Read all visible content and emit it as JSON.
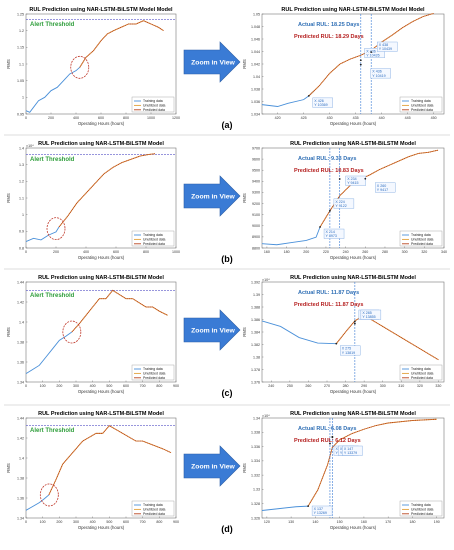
{
  "zoom_label": "Zoom in View",
  "legend": [
    "Training data",
    "Unutilized data",
    "Predicted data"
  ],
  "chart_data": [
    {
      "label": "(a)",
      "left": {
        "type": "line",
        "title": "RUL Prediction using NAR-LSTM-BiLSTM Model Model",
        "xlabel": "Operating Hours (hours)",
        "ylabel": "RMS",
        "xticks": [
          "0",
          "200",
          "400",
          "600",
          "800",
          "1000",
          "1200"
        ],
        "yticks": [
          "1.25",
          "1.2",
          "1.15",
          "1.1",
          "1.05",
          "1",
          "0.95"
        ],
        "exponent": "",
        "xlim": [
          0,
          1200
        ],
        "ylim": [
          0.95,
          1.25
        ],
        "threshold": 1.234,
        "annotation": "Alert Threshold",
        "train": [
          [
            0,
            0.96
          ],
          [
            30,
            0.955
          ],
          [
            60,
            0.97
          ],
          [
            100,
            0.99
          ],
          [
            150,
            1.0
          ],
          [
            200,
            1.02
          ],
          [
            250,
            1.03
          ],
          [
            300,
            1.05
          ],
          [
            350,
            1.07
          ],
          [
            400,
            1.08
          ],
          [
            430,
            1.09
          ]
        ],
        "pred": [
          [
            430,
            1.09
          ],
          [
            480,
            1.12
          ],
          [
            540,
            1.14
          ],
          [
            600,
            1.17
          ],
          [
            650,
            1.19
          ],
          [
            700,
            1.2
          ],
          [
            760,
            1.21
          ],
          [
            820,
            1.22
          ],
          [
            880,
            1.22
          ],
          [
            940,
            1.23
          ],
          [
            1000,
            1.22
          ],
          [
            1060,
            1.21
          ],
          [
            1100,
            1.2
          ]
        ],
        "ellipse": [
          430,
          1.09
        ]
      },
      "right": {
        "type": "line",
        "title": "RUL Prediction using NAR-LSTM-BiLSTM Model Model",
        "xlabel": "Operating Hours (hours)",
        "ylabel": "RMS",
        "xticks": [
          "420",
          "425",
          "430",
          "435",
          "440",
          "445",
          "450"
        ],
        "yticks": [
          "1.05",
          "1.048",
          "1.046",
          "1.044",
          "1.042",
          "1.04",
          "1.038",
          "1.036",
          "1.034"
        ],
        "exponent": "",
        "xlim": [
          417,
          452
        ],
        "ylim": [
          1.034,
          1.05
        ],
        "actual_rul": "Actual RUL: 18.25 Days",
        "pred_rul": "Predicted RUL: 18.29 Days",
        "train": [
          [
            417,
            1.0355
          ],
          [
            420,
            1.0352
          ],
          [
            422,
            1.0357
          ],
          [
            425,
            1.0363
          ],
          [
            426,
            1.0369
          ],
          [
            427,
            1.0377
          ]
        ],
        "pred": [
          [
            426,
            1.0369
          ],
          [
            428,
            1.0385
          ],
          [
            430,
            1.0405
          ],
          [
            432,
            1.042
          ],
          [
            434,
            1.0428
          ],
          [
            436,
            1.0434
          ],
          [
            438,
            1.0442
          ],
          [
            440,
            1.0455
          ],
          [
            442,
            1.0466
          ],
          [
            444,
            1.0478
          ],
          [
            446,
            1.0488
          ],
          [
            448,
            1.0496
          ],
          [
            450,
            1.0501
          ]
        ],
        "tooltips": [
          {
            "x": 426,
            "y": 1.0369,
            "text": [
              "X 426",
              "Y 10369"
            ]
          },
          {
            "x": 436,
            "y": 1.0426,
            "text": [
              "X 436",
              "Y 10426"
            ]
          },
          {
            "x": 438,
            "y": 1.0439,
            "text": [
              "X 438",
              "Y 10439"
            ]
          },
          {
            "x": 436,
            "y": 1.0419,
            "text": [
              "X 436",
              "Y 10419"
            ]
          }
        ],
        "vlines": [
          436,
          438
        ]
      }
    },
    {
      "label": "(b)",
      "left": {
        "type": "line",
        "title": "RUL Prediction using NAR-LSTM-BiLSTM Model",
        "xlabel": "Operating Hours (hours)",
        "ylabel": "RMS",
        "xticks": [
          "0",
          "200",
          "400",
          "600",
          "800",
          "1000"
        ],
        "yticks": [
          "1.4",
          "1.3",
          "1.2",
          "1.1",
          "1",
          "0.9",
          "0.8"
        ],
        "exponent": "×10⁴",
        "xlim": [
          0,
          1000
        ],
        "ylim": [
          0.8,
          1.42
        ],
        "threshold": 1.38,
        "annotation": "Alert Threshold",
        "train": [
          [
            0,
            0.84
          ],
          [
            50,
            0.86
          ],
          [
            100,
            0.85
          ],
          [
            150,
            0.88
          ],
          [
            200,
            0.9
          ],
          [
            220,
            0.93
          ]
        ],
        "pred": [
          [
            220,
            0.93
          ],
          [
            280,
            1.0
          ],
          [
            340,
            1.08
          ],
          [
            400,
            1.14
          ],
          [
            460,
            1.2
          ],
          [
            520,
            1.26
          ],
          [
            580,
            1.3
          ],
          [
            640,
            1.33
          ],
          [
            700,
            1.35
          ],
          [
            760,
            1.37
          ],
          [
            820,
            1.38
          ],
          [
            860,
            1.385
          ]
        ],
        "ellipse": [
          200,
          0.92
        ]
      },
      "right": {
        "type": "line",
        "title": "RUL Prediction using NAR-LSTM-BiLSTM Model",
        "xlabel": "Operating Hours (hours)",
        "ylabel": "RMS",
        "xticks": [
          "160",
          "180",
          "200",
          "220",
          "240",
          "260",
          "280",
          "300",
          "320",
          "340"
        ],
        "yticks": [
          "9700",
          "9600",
          "9500",
          "9400",
          "9300",
          "9200",
          "9100",
          "9000",
          "8900",
          "8800"
        ],
        "exponent": "",
        "xlim": [
          155,
          340
        ],
        "ylim": [
          8780,
          9700
        ],
        "actual_rul": "Actual RUL: 9.33 Days",
        "pred_rul": "Predicted RUL: 10.83 Days",
        "train": [
          [
            155,
            8820
          ],
          [
            170,
            8810
          ],
          [
            185,
            8830
          ],
          [
            200,
            8850
          ],
          [
            210,
            8880
          ],
          [
            214,
            8973
          ]
        ],
        "pred": [
          [
            214,
            8973
          ],
          [
            224,
            9122
          ],
          [
            234,
            9260
          ],
          [
            244,
            9350
          ],
          [
            254,
            9410
          ],
          [
            264,
            9450
          ],
          [
            274,
            9500
          ],
          [
            284,
            9540
          ],
          [
            294,
            9580
          ],
          [
            304,
            9620
          ],
          [
            314,
            9650
          ],
          [
            324,
            9660
          ],
          [
            334,
            9680
          ]
        ],
        "tooltips": [
          {
            "x": 214,
            "y": 8973,
            "text": [
              "X 214",
              "Y 8973"
            ]
          },
          {
            "x": 224,
            "y": 9122,
            "text": [
              "X 224",
              "Y 9122"
            ]
          },
          {
            "x": 234,
            "y": 9415,
            "text": [
              "X 234",
              "Y 9415"
            ]
          },
          {
            "x": 260,
            "y": 9417,
            "text": [
              "X 260",
              "Y 9417"
            ]
          }
        ],
        "vlines": [
          224,
          234
        ]
      }
    },
    {
      "label": "(c)",
      "left": {
        "type": "line",
        "title": "RUL Prediction using NAR-LSTM-BiLSTM Model",
        "xlabel": "Operating Hours (hours)",
        "ylabel": "RMS",
        "xticks": [
          "0",
          "100",
          "200",
          "300",
          "400",
          "500",
          "600",
          "700",
          "800",
          "900"
        ],
        "yticks": [
          "1.44",
          "1.42",
          "1.4",
          "1.38",
          "1.36",
          "1.34"
        ],
        "exponent": "",
        "xlim": [
          0,
          900
        ],
        "ylim": [
          1.33,
          1.45
        ],
        "threshold": 1.44,
        "annotation": "Alert Threshold",
        "train": [
          [
            0,
            1.34
          ],
          [
            40,
            1.345
          ],
          [
            80,
            1.35
          ],
          [
            120,
            1.36
          ],
          [
            160,
            1.37
          ],
          [
            200,
            1.38
          ],
          [
            240,
            1.385
          ],
          [
            275,
            1.39
          ]
        ],
        "pred": [
          [
            275,
            1.39
          ],
          [
            320,
            1.4
          ],
          [
            360,
            1.41
          ],
          [
            400,
            1.42
          ],
          [
            440,
            1.43
          ],
          [
            480,
            1.43
          ],
          [
            520,
            1.44
          ],
          [
            560,
            1.435
          ],
          [
            600,
            1.43
          ],
          [
            640,
            1.43
          ],
          [
            680,
            1.425
          ],
          [
            720,
            1.42
          ],
          [
            760,
            1.42
          ],
          [
            800,
            1.415
          ],
          [
            850,
            1.41
          ]
        ],
        "ellipse": [
          275,
          1.39
        ]
      },
      "right": {
        "type": "line",
        "title": "RUL Prediction using NAR-LSTM-BiLSTM Model",
        "xlabel": "Operating Hours (hours)",
        "ylabel": "RMS",
        "xticks": [
          "240",
          "250",
          "260",
          "270",
          "280",
          "290",
          "300",
          "310",
          "320",
          "330"
        ],
        "yticks": [
          "1.392",
          "1.39",
          "1.388",
          "1.386",
          "1.384",
          "1.382",
          "1.38",
          "1.378",
          "1.376"
        ],
        "exponent": "×10⁴",
        "xlim": [
          235,
          333
        ],
        "ylim": [
          1.375,
          1.393
        ],
        "actual_rul": "Actual RUL: 11.87 Days",
        "pred_rul": "Predicted RUL: 11.87 Days",
        "train": [
          [
            235,
            1.386
          ],
          [
            245,
            1.385
          ],
          [
            255,
            1.383
          ],
          [
            265,
            1.382
          ],
          [
            275,
            1.3819
          ]
        ],
        "pred": [
          [
            275,
            1.3819
          ],
          [
            280,
            1.384
          ],
          [
            285,
            1.386
          ],
          [
            290,
            1.387
          ],
          [
            295,
            1.386
          ],
          [
            300,
            1.385
          ],
          [
            305,
            1.384
          ],
          [
            310,
            1.383
          ],
          [
            315,
            1.382
          ],
          [
            320,
            1.381
          ],
          [
            325,
            1.38
          ],
          [
            330,
            1.379
          ]
        ],
        "tooltips": [
          {
            "x": 275,
            "y": 1.3819,
            "text": [
              "X 275",
              "Y 13819"
            ]
          },
          {
            "x": 285,
            "y": 1.3859,
            "text": [
              "X 285",
              "Y 13859"
            ]
          },
          {
            "x": 285,
            "y": 1.3855,
            "text": [
              "X 285",
              "Y 13855"
            ]
          }
        ],
        "vlines": [
          285
        ]
      }
    },
    {
      "label": "(d)",
      "left": {
        "type": "line",
        "title": "RUL Prediction using NAR-LSTM-BiLSTM Model",
        "xlabel": "Operating Hours (hours)",
        "ylabel": "RMS",
        "xticks": [
          "0",
          "100",
          "200",
          "300",
          "400",
          "500",
          "600",
          "700",
          "800",
          "900"
        ],
        "yticks": [
          "1.44",
          "1.42",
          "1.4",
          "1.38",
          "1.36",
          "1.34"
        ],
        "exponent": "",
        "xlim": [
          0,
          900
        ],
        "ylim": [
          1.32,
          1.45
        ],
        "threshold": 1.44,
        "annotation": "Alert Threshold",
        "train": [
          [
            0,
            1.33
          ],
          [
            40,
            1.335
          ],
          [
            80,
            1.34
          ],
          [
            110,
            1.345
          ],
          [
            137,
            1.35
          ]
        ],
        "pred": [
          [
            137,
            1.35
          ],
          [
            180,
            1.37
          ],
          [
            220,
            1.39
          ],
          [
            260,
            1.4
          ],
          [
            300,
            1.41
          ],
          [
            340,
            1.42
          ],
          [
            380,
            1.425
          ],
          [
            420,
            1.43
          ],
          [
            460,
            1.43
          ],
          [
            500,
            1.44
          ],
          [
            540,
            1.435
          ],
          [
            580,
            1.43
          ],
          [
            620,
            1.425
          ],
          [
            660,
            1.42
          ],
          [
            700,
            1.42
          ],
          [
            760,
            1.415
          ],
          [
            820,
            1.41
          ],
          [
            870,
            1.405
          ]
        ],
        "ellipse": [
          140,
          1.35
        ]
      },
      "right": {
        "type": "line",
        "title": "RUL Prediction using NAR-LSTM-BiLSTM Model",
        "xlabel": "Operating Hours (hours)",
        "ylabel": "RMS",
        "xticks": [
          "120",
          "130",
          "140",
          "150",
          "160",
          "170",
          "180",
          "190"
        ],
        "yticks": [
          "1.34",
          "1.338",
          "1.336",
          "1.334",
          "1.332",
          "1.33",
          "1.328",
          "1.326"
        ],
        "exponent": "×10⁴",
        "xlim": [
          118,
          193
        ],
        "ylim": [
          1.325,
          1.341
        ],
        "actual_rul": "Actual RUL: 6.08 Days",
        "pred_rul": "Predicted RUL: 6.12 Days",
        "train": [
          [
            118,
            1.3262
          ],
          [
            125,
            1.3265
          ],
          [
            132,
            1.3268
          ],
          [
            137,
            1.3269
          ]
        ],
        "pred": [
          [
            137,
            1.3269
          ],
          [
            141,
            1.3295
          ],
          [
            145,
            1.3335
          ],
          [
            147,
            1.3363
          ],
          [
            150,
            1.3375
          ],
          [
            155,
            1.3385
          ],
          [
            160,
            1.3392
          ],
          [
            165,
            1.3398
          ],
          [
            170,
            1.3402
          ],
          [
            175,
            1.3404
          ],
          [
            180,
            1.3406
          ],
          [
            185,
            1.3407
          ],
          [
            190,
            1.3408
          ]
        ],
        "tooltips": [
          {
            "x": 137,
            "y": 1.3269,
            "text": [
              "X 137",
              "Y 13269"
            ]
          },
          {
            "x": 146,
            "y": 1.3369,
            "text": [
              "X 146",
              "Y 13369"
            ]
          },
          {
            "x": 147,
            "y": 1.338,
            "text": [
              "X 147",
              "Y 13380"
            ]
          },
          {
            "x": 147,
            "y": 1.3379,
            "text": [
              "X 147",
              "Y 13379"
            ]
          }
        ],
        "vlines": [
          146,
          147
        ]
      }
    }
  ]
}
